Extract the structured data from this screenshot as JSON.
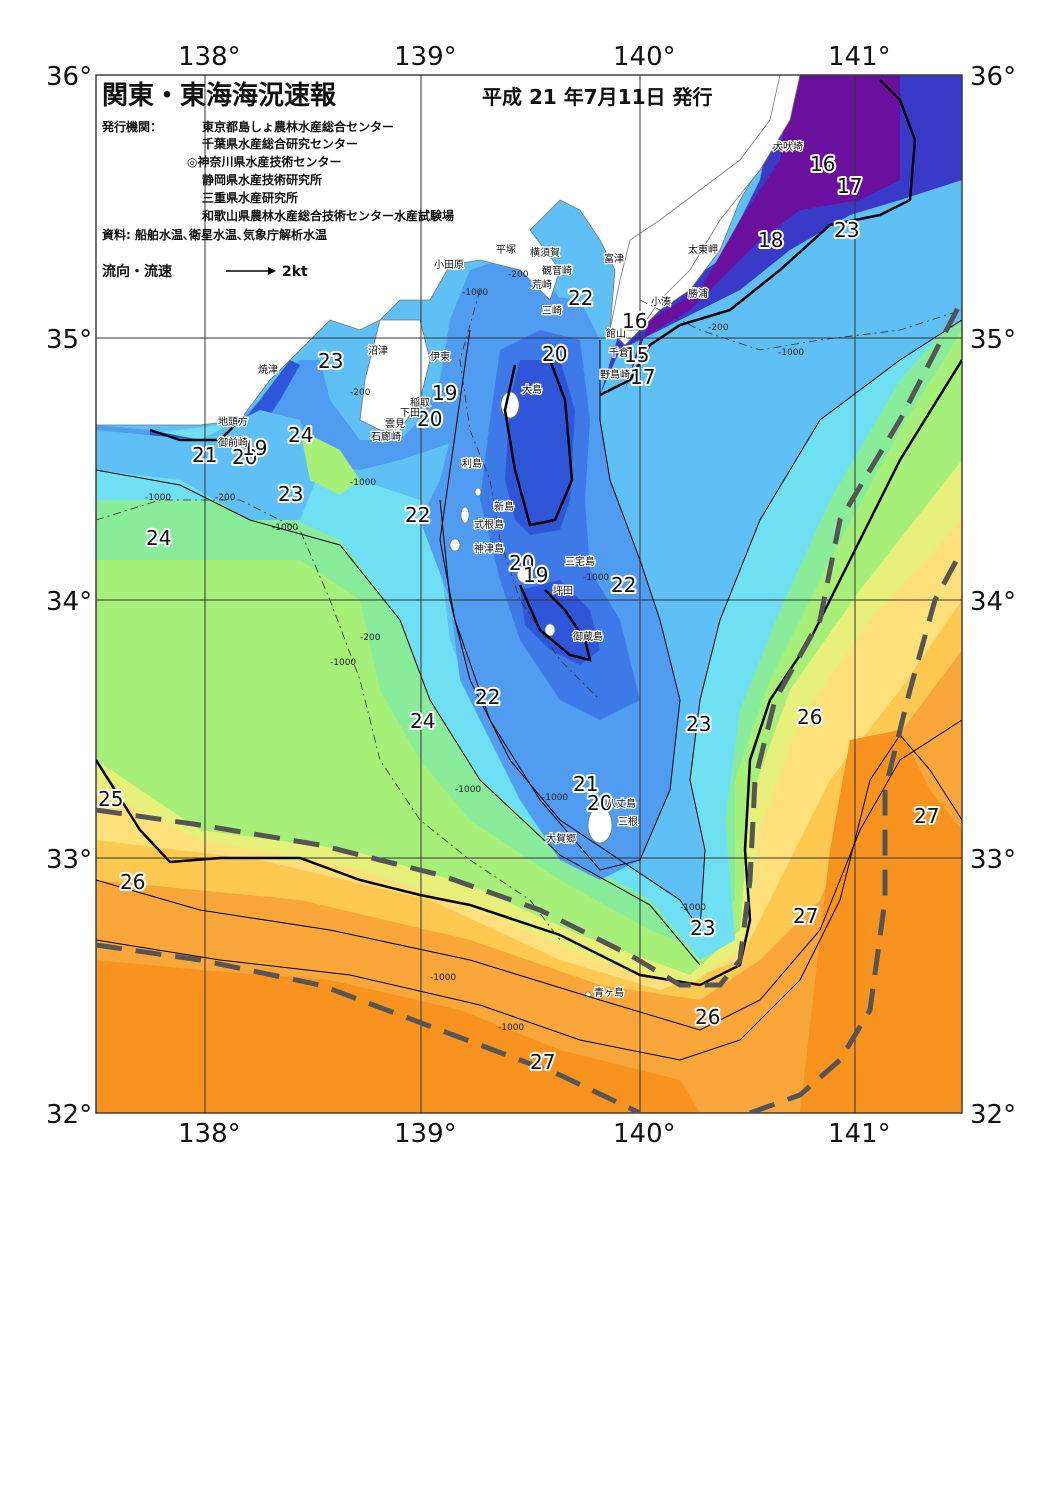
{
  "title": "関東・東海海況速報",
  "issue_date": "平成 21 年7月11日 発行",
  "publisher_label": "発行機関：",
  "publishers": [
    "東京都島しょ農林水産総合センター",
    "千葉県水産総合研究センター",
    "◎神奈川県水産技術センター",
    "静岡県水産技術研究所",
    "三重県水産研究所",
    "和歌山県農林水産総合技術センター水産試験場"
  ],
  "sources": "資料: 船舶水温､衛星水温､気象庁解析水温",
  "legend": {
    "label": "流向・流速",
    "scale": "2kt"
  },
  "axes": {
    "lon_labels": [
      "138°",
      "139°",
      "140°",
      "141°"
    ],
    "lat_labels": [
      "36°",
      "35°",
      "34°",
      "33°",
      "32°"
    ]
  },
  "colors": {
    "t16": "#6a0f9e",
    "t17": "#7a22b8",
    "t18": "#3a3ac8",
    "t19": "#2f56d8",
    "t20": "#3d7ae8",
    "t21": "#4f9cf0",
    "t22": "#5ec0f5",
    "t23": "#6fe0f4",
    "t24": "#88ec9a",
    "t24b": "#a6f07a",
    "t25": "#e6f07a",
    "t26": "#ffe07a",
    "t26b": "#ffc850",
    "t27": "#f9a63a",
    "t28": "#f7931e",
    "land": "#ffffff",
    "current": "#555555"
  },
  "isotherm_labels": [
    "16",
    "17",
    "23",
    "18",
    "22",
    "15",
    "16",
    "17",
    "20",
    "23",
    "19",
    "20",
    "24",
    "21",
    "20",
    "19",
    "23",
    "22",
    "24",
    "20",
    "19",
    "22",
    "22",
    "24",
    "23",
    "26",
    "21",
    "20",
    "25",
    "27",
    "26",
    "27",
    "23",
    "26",
    "27"
  ],
  "place_names": [
    "犬吠埼",
    "太東岬",
    "勝浦",
    "小湊",
    "館山",
    "千倉",
    "野島崎",
    "富津",
    "観音崎",
    "横須賀",
    "平塚",
    "小田原",
    "荒崎",
    "三崎",
    "沼津",
    "伊東",
    "焼津",
    "稲取",
    "下田",
    "雲見",
    "石廊崎",
    "地頭方",
    "御前崎",
    "大島",
    "利島",
    "新島",
    "式根島",
    "神津島",
    "三宅島",
    "坪田",
    "御蔵島",
    "八丈島",
    "三根",
    "大賀郷",
    "青ヶ島"
  ],
  "depth_contours": [
    "-200",
    "-1000"
  ]
}
